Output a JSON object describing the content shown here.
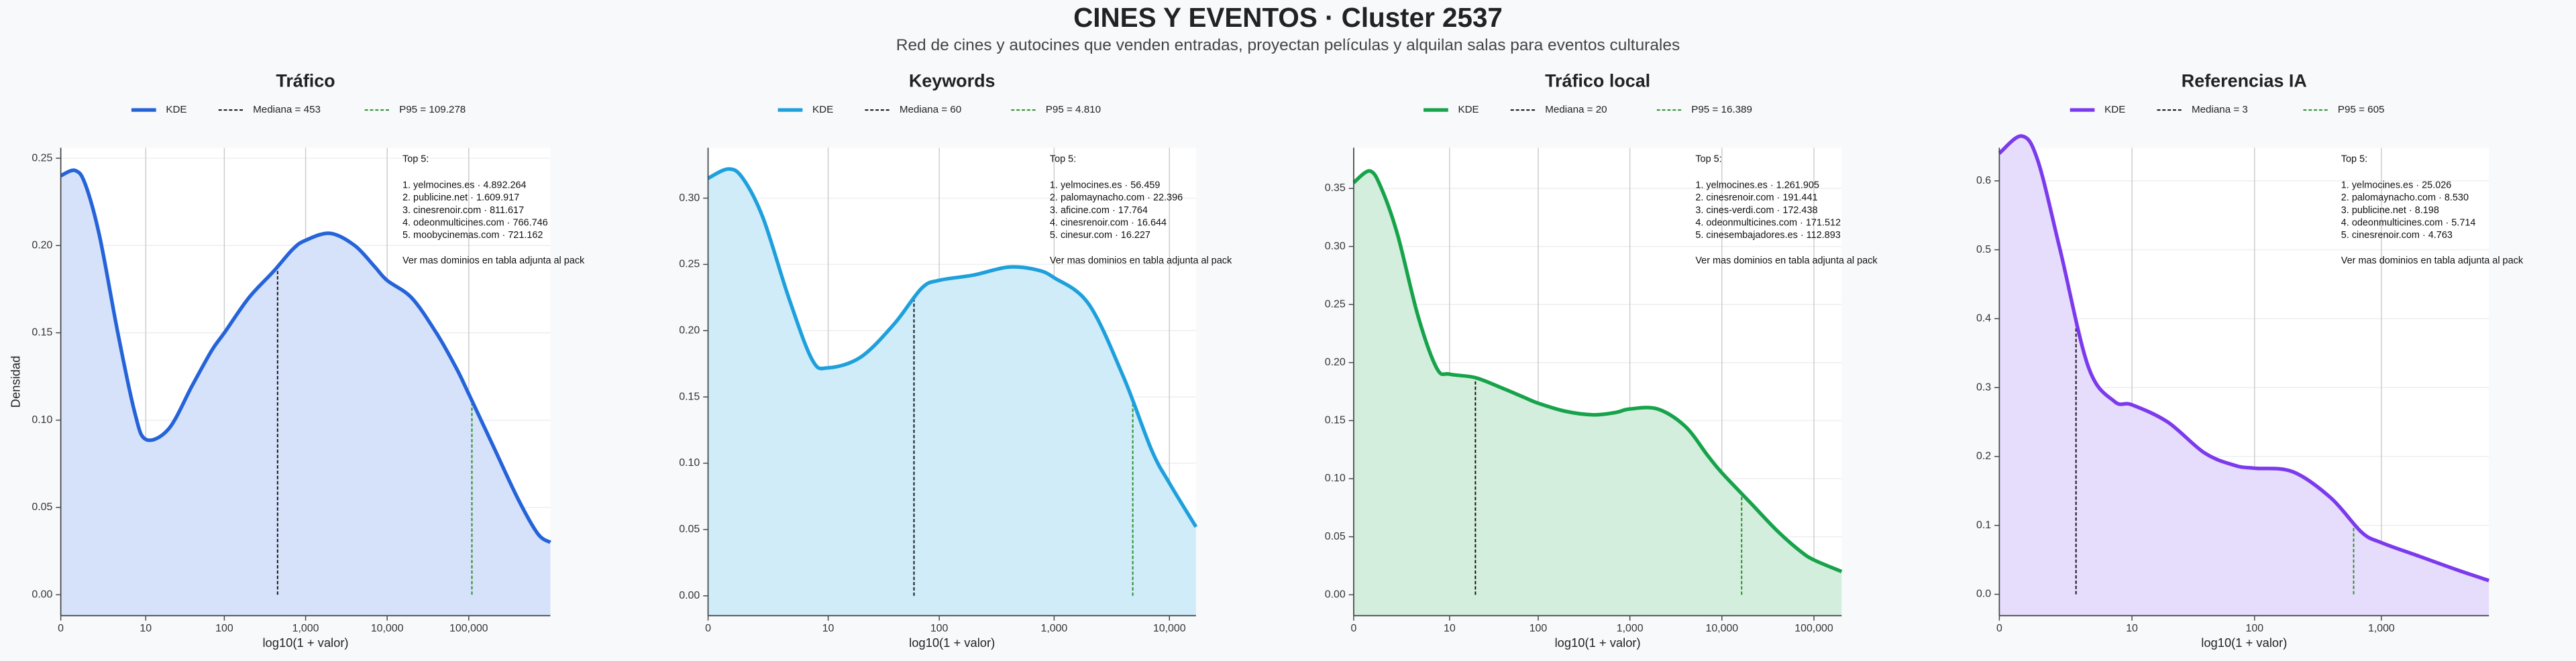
{
  "title": "CINES Y EVENTOS · Cluster 2537",
  "subtitle": "Red de cines y autocines que venden entradas, proyectan películas y alquilan salas para eventos culturales",
  "chart_data": [
    {
      "type": "area",
      "title": "Tráfico",
      "x_label": "log10(1 + valor)",
      "y_label": "Densidad",
      "x_scale": "log1p",
      "grid": true,
      "xlim": [
        0,
        1000000
      ],
      "ylim": [
        -0.012,
        0.256
      ],
      "xticks": [
        0,
        10,
        100,
        {
          "value": 1000,
          "label": "1,000"
        },
        {
          "value": 10000,
          "label": "10,000"
        },
        {
          "value": 100000,
          "label": "100,000"
        }
      ],
      "yticks": [
        {
          "value": 0,
          "label": "0.00"
        },
        {
          "value": 0.05,
          "label": "0.05"
        },
        {
          "value": 0.1,
          "label": "0.10"
        },
        {
          "value": 0.15,
          "label": "0.15"
        },
        {
          "value": 0.2,
          "label": "0.20"
        },
        {
          "value": 0.25,
          "label": "0.25"
        }
      ],
      "x": [
        0,
        0.5,
        1,
        2,
        4,
        7,
        10,
        20,
        40,
        70,
        100,
        200,
        400,
        700,
        1000,
        2000,
        4000,
        7000,
        10000,
        20000,
        40000,
        70000,
        100000,
        200000,
        400000,
        700000,
        1000000
      ],
      "series": [
        {
          "name": "KDE",
          "color": "#2563d9",
          "fill": "#d6e2fa",
          "values": [
            0.24,
            0.243,
            0.235,
            0.205,
            0.15,
            0.105,
            0.089,
            0.095,
            0.12,
            0.14,
            0.15,
            0.17,
            0.185,
            0.198,
            0.203,
            0.207,
            0.2,
            0.188,
            0.18,
            0.17,
            0.15,
            0.13,
            0.115,
            0.085,
            0.055,
            0.035,
            0.03
          ]
        }
      ],
      "median": 453,
      "median_label": "Mediana = 453",
      "median_color": "#111111",
      "p95": 109278,
      "p95_label": "P95 = 109.278",
      "p95_color": "#2a8f2a",
      "top_title": "Top 5:",
      "top_items": [
        "1. yelmocines.es · 4.892.264",
        "2. publicine.net · 1.609.917",
        "3. cinesrenoir.com · 811.617",
        "4. odeonmulticines.com · 766.746",
        "5. moobycinemas.com · 721.162"
      ],
      "top_note": "Ver mas dominios en tabla adjunta al pack"
    },
    {
      "type": "area",
      "title": "Keywords",
      "x_label": "log10(1 + valor)",
      "x_scale": "log1p",
      "grid": true,
      "xlim": [
        0,
        17000
      ],
      "ylim": [
        -0.015,
        0.338
      ],
      "xticks": [
        0,
        10,
        100,
        {
          "value": 1000,
          "label": "1,000"
        },
        {
          "value": 10000,
          "label": "10,000"
        }
      ],
      "yticks": [
        {
          "value": 0,
          "label": "0.00"
        },
        {
          "value": 0.05,
          "label": "0.05"
        },
        {
          "value": 0.1,
          "label": "0.10"
        },
        {
          "value": 0.15,
          "label": "0.15"
        },
        {
          "value": 0.2,
          "label": "0.20"
        },
        {
          "value": 0.25,
          "label": "0.25"
        },
        {
          "value": 0.3,
          "label": "0.30"
        }
      ],
      "x": [
        0,
        0.5,
        1,
        2,
        4,
        7,
        10,
        20,
        40,
        70,
        100,
        200,
        400,
        700,
        1000,
        2000,
        4000,
        7000,
        10000,
        17000
      ],
      "series": [
        {
          "name": "KDE",
          "color": "#1ea0dc",
          "fill": "#d0ecf9",
          "values": [
            0.315,
            0.322,
            0.315,
            0.285,
            0.225,
            0.178,
            0.172,
            0.18,
            0.205,
            0.232,
            0.238,
            0.242,
            0.248,
            0.246,
            0.24,
            0.22,
            0.165,
            0.11,
            0.085,
            0.052
          ]
        }
      ],
      "median": 60,
      "median_label": "Mediana = 60",
      "median_color": "#111111",
      "p95": 4810,
      "p95_label": "P95 = 4.810",
      "p95_color": "#2a8f2a",
      "top_title": "Top 5:",
      "top_items": [
        "1. yelmocines.es · 56.459",
        "2. palomaynacho.com · 22.396",
        "3. aficine.com · 17.764",
        "4. cinesrenoir.com · 16.644",
        "5. cinesur.com · 16.227"
      ],
      "top_note": "Ver mas dominios en tabla adjunta al pack"
    },
    {
      "type": "area",
      "title": "Tráfico local",
      "x_label": "log10(1 + valor)",
      "x_scale": "log1p",
      "grid": true,
      "xlim": [
        0,
        200000
      ],
      "ylim": [
        -0.018,
        0.385
      ],
      "xticks": [
        0,
        10,
        100,
        {
          "value": 1000,
          "label": "1,000"
        },
        {
          "value": 10000,
          "label": "10,000"
        },
        {
          "value": 100000,
          "label": "100,000"
        }
      ],
      "yticks": [
        {
          "value": 0,
          "label": "0.00"
        },
        {
          "value": 0.05,
          "label": "0.05"
        },
        {
          "value": 0.1,
          "label": "0.10"
        },
        {
          "value": 0.15,
          "label": "0.15"
        },
        {
          "value": 0.2,
          "label": "0.20"
        },
        {
          "value": 0.25,
          "label": "0.25"
        },
        {
          "value": 0.3,
          "label": "0.30"
        },
        {
          "value": 0.35,
          "label": "0.35"
        }
      ],
      "x": [
        0,
        0.5,
        1,
        2,
        4,
        7,
        10,
        20,
        40,
        70,
        100,
        200,
        400,
        700,
        1000,
        2000,
        4000,
        7000,
        10000,
        20000,
        40000,
        70000,
        100000,
        200000
      ],
      "series": [
        {
          "name": "KDE",
          "color": "#16a34a",
          "fill": "#d3eedc",
          "values": [
            0.355,
            0.365,
            0.35,
            0.31,
            0.24,
            0.195,
            0.19,
            0.187,
            0.178,
            0.17,
            0.165,
            0.158,
            0.155,
            0.157,
            0.16,
            0.16,
            0.145,
            0.12,
            0.105,
            0.08,
            0.055,
            0.038,
            0.03,
            0.02
          ]
        }
      ],
      "median": 20,
      "median_label": "Mediana = 20",
      "median_color": "#111111",
      "p95": 16389,
      "p95_label": "P95 = 16.389",
      "p95_color": "#2a8f2a",
      "top_title": "Top 5:",
      "top_items": [
        "1. yelmocines.es · 1.261.905",
        "2. cinesrenoir.com · 191.441",
        "3. cines-verdi.com · 172.438",
        "4. odeonmulticines.com · 171.512",
        "5. cinesembajadores.es · 112.893"
      ],
      "top_note": "Ver mas dominios en tabla adjunta al pack"
    },
    {
      "type": "area",
      "title": "Referencias IA",
      "x_label": "log10(1 + valor)",
      "x_scale": "log1p",
      "grid": true,
      "xlim": [
        0,
        7000
      ],
      "ylim": [
        -0.031,
        0.648
      ],
      "xticks": [
        0,
        10,
        100,
        {
          "value": 1000,
          "label": "1,000"
        }
      ],
      "yticks": [
        {
          "value": 0,
          "label": "0.0"
        },
        {
          "value": 0.1,
          "label": "0.1"
        },
        {
          "value": 0.2,
          "label": "0.2"
        },
        {
          "value": 0.3,
          "label": "0.3"
        },
        {
          "value": 0.4,
          "label": "0.4"
        },
        {
          "value": 0.5,
          "label": "0.5"
        },
        {
          "value": 0.6,
          "label": "0.6"
        }
      ],
      "x": [
        0,
        0.5,
        1,
        2,
        4,
        7,
        10,
        20,
        40,
        70,
        100,
        200,
        400,
        700,
        1000,
        2000,
        4000,
        7000
      ],
      "series": [
        {
          "name": "KDE",
          "color": "#7c3aed",
          "fill": "#e6dcfb",
          "values": [
            0.64,
            0.665,
            0.63,
            0.5,
            0.33,
            0.28,
            0.275,
            0.25,
            0.205,
            0.187,
            0.183,
            0.178,
            0.14,
            0.09,
            0.075,
            0.055,
            0.035,
            0.02
          ]
        }
      ],
      "median": 3,
      "median_label": "Mediana = 3",
      "median_color": "#111111",
      "p95": 605,
      "p95_label": "P95 = 605",
      "p95_color": "#2a8f2a",
      "top_title": "Top 5:",
      "top_items": [
        "1. yelmocines.es · 25.026",
        "2. palomaynacho.com · 8.530",
        "3. publicine.net · 8.198",
        "4. odeonmulticines.com · 5.714",
        "5. cinesrenoir.com · 4.763"
      ],
      "top_note": "Ver mas dominios en tabla adjunta al pack"
    }
  ]
}
